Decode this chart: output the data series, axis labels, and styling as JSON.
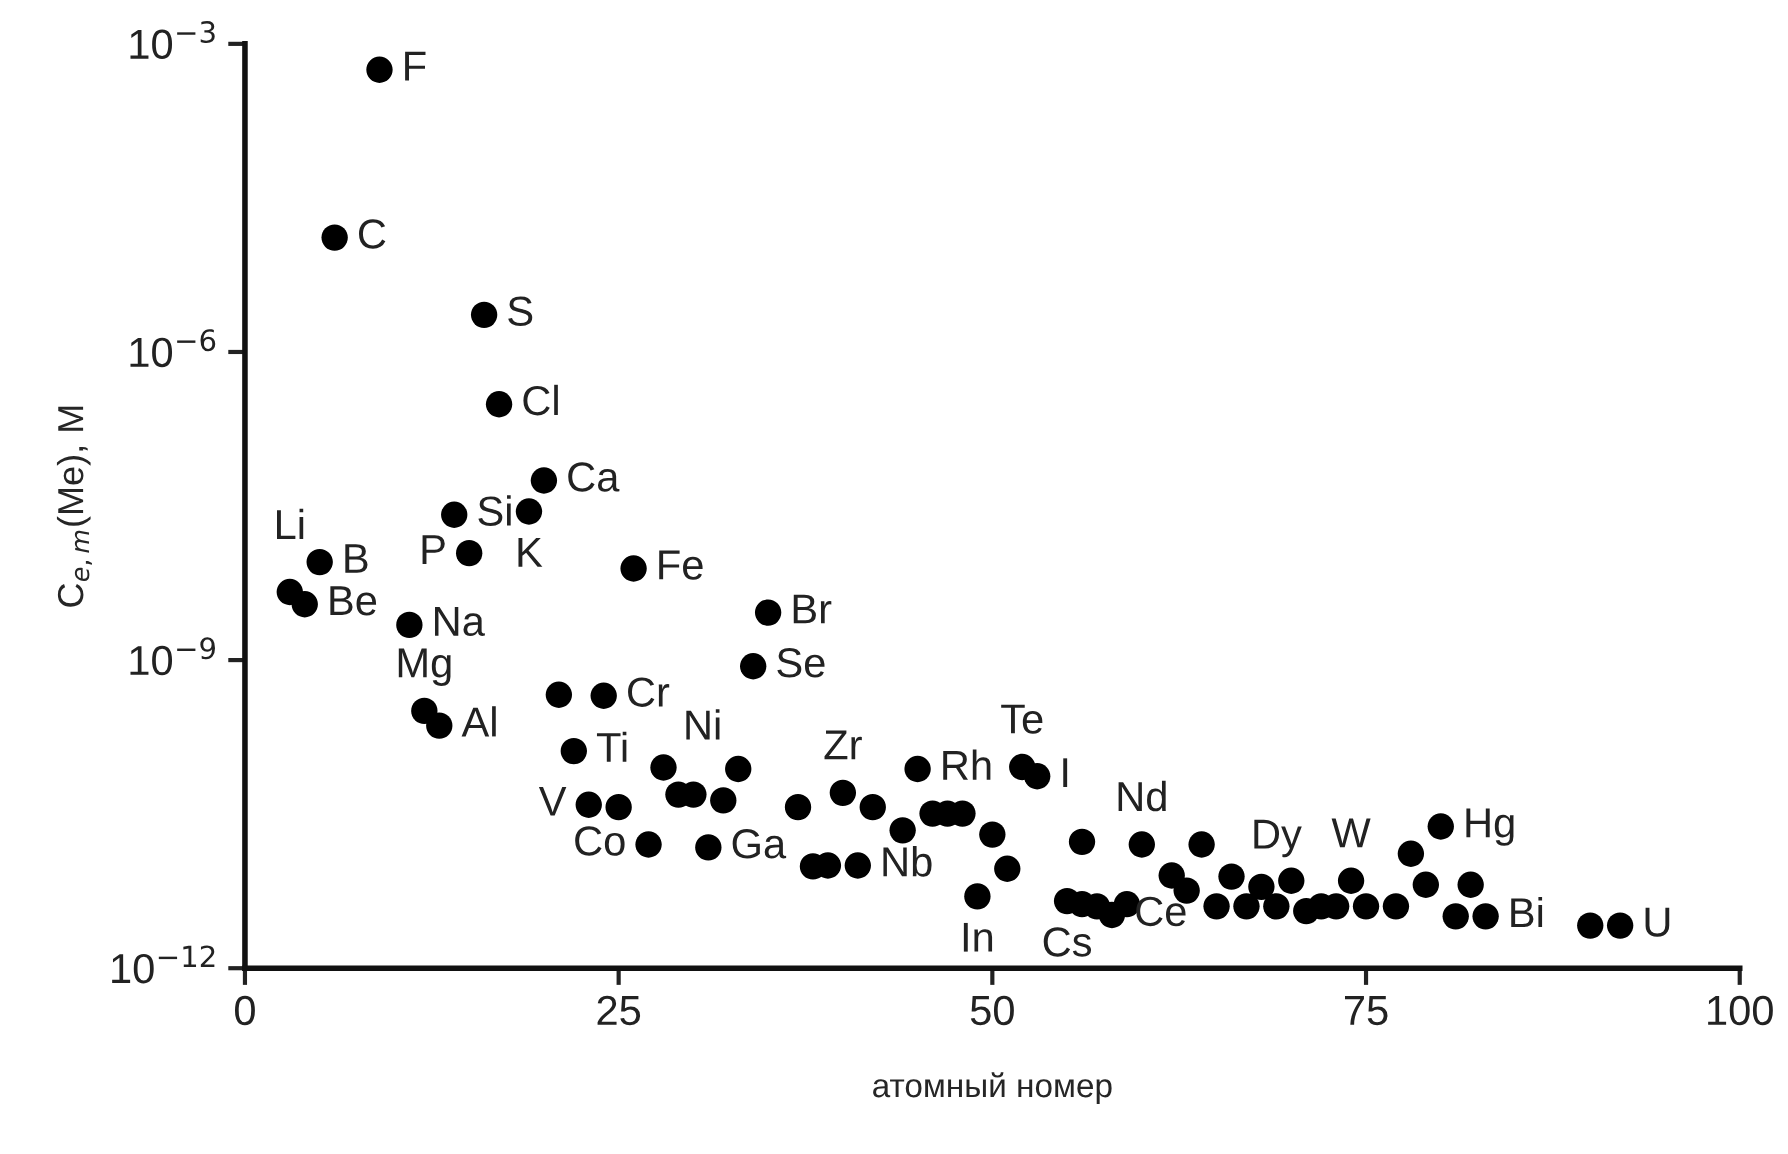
{
  "chart_data": {
    "type": "scatter",
    "xlabel": "атомный номер",
    "ylabel": "C$_{e,m}$(Me), M",
    "x": [
      3,
      4,
      5,
      6,
      9,
      11,
      12,
      13,
      14,
      15,
      16,
      17,
      19,
      20,
      21,
      22,
      23,
      24,
      25,
      26,
      27,
      28,
      29,
      30,
      31,
      32,
      33,
      34,
      35,
      37,
      38,
      39,
      40,
      41,
      42,
      44,
      45,
      46,
      47,
      48,
      49,
      50,
      51,
      52,
      53,
      55,
      56,
      56,
      57,
      58,
      59,
      60,
      62,
      63,
      64,
      65,
      66,
      67,
      68,
      69,
      70,
      71,
      72,
      73,
      74,
      75,
      77,
      78,
      79,
      80,
      81,
      82,
      83,
      90,
      92
    ],
    "series": [
      {
        "color": "#000000",
        "values": [
          4.6e-09,
          3.5e-09,
          9e-09,
          1.3e-05,
          0.00056,
          2.2e-09,
          3.2e-10,
          2.3e-10,
          2.6e-08,
          1.1e-08,
          2.3e-06,
          3.1e-07,
          2.8e-08,
          5.6e-08,
          4.6e-10,
          1.3e-10,
          3.9e-11,
          4.5e-10,
          3.7e-11,
          7.8e-09,
          1.6e-11,
          9e-11,
          4.9e-11,
          4.9e-11,
          1.5e-11,
          4.3e-11,
          8.7e-11,
          8.7e-10,
          2.9e-09,
          3.7e-11,
          9.8e-12,
          1e-11,
          5.1e-11,
          1e-11,
          3.7e-11,
          2.2e-11,
          8.7e-11,
          3.2e-11,
          3.2e-11,
          3.2e-11,
          5e-12,
          2e-11,
          9.3e-12,
          9.1e-11,
          7.4e-11,
          4.5e-12,
          1.7e-11,
          4.2e-12,
          4e-12,
          3.3e-12,
          4.2e-12,
          1.6e-11,
          8e-12,
          5.7e-12,
          1.6e-11,
          4e-12,
          7.8e-12,
          4e-12,
          6.2e-12,
          4e-12,
          7.1e-12,
          3.6e-12,
          4e-12,
          4e-12,
          7.1e-12,
          4e-12,
          4e-12,
          1.3e-11,
          6.5e-12,
          2.4e-11,
          3.2e-12,
          6.5e-12,
          3.2e-12,
          2.6e-12,
          2.6e-12
        ]
      }
    ],
    "log": "y",
    "marker": "circle",
    "grid": false,
    "xlim": [
      0,
      100
    ],
    "xticks": [
      0,
      25,
      50,
      75,
      100
    ],
    "ylim": [
      1e-12,
      0.001
    ],
    "yticks": [
      {
        "value": 1e-12,
        "label": "10$^{−12}$"
      },
      {
        "value": 1e-09,
        "label": "10$^{−9}$"
      },
      {
        "value": 1e-06,
        "label": "10$^{−6}$"
      },
      {
        "value": 0.001,
        "label": "10$^{−3}$"
      }
    ],
    "annotations": [
      {
        "text": "F",
        "x": 9,
        "y": 0.00056
      },
      {
        "text": "C",
        "x": 6,
        "y": 1.3e-05
      },
      {
        "text": "S",
        "x": 16,
        "y": 2.3e-06
      },
      {
        "text": "Cl",
        "x": 17,
        "y": 3.1e-07
      },
      {
        "text": "Ca",
        "x": 20,
        "y": 5.6e-08
      },
      {
        "text": "Si",
        "x": 14,
        "y": 2.6e-08
      },
      {
        "text": "Li",
        "x": 3,
        "y": 4.6e-09
      },
      {
        "text": "B",
        "x": 5,
        "y": 9e-09
      },
      {
        "text": "K",
        "x": 19,
        "y": 2.8e-08
      },
      {
        "text": "P",
        "x": 15,
        "y": 1.1e-08
      },
      {
        "text": "Fe",
        "x": 26,
        "y": 7.8e-09
      },
      {
        "text": "Br",
        "x": 35,
        "y": 2.9e-09
      },
      {
        "text": "Na",
        "x": 11,
        "y": 2.2e-09
      },
      {
        "text": "Be",
        "x": 4,
        "y": 3.5e-09
      },
      {
        "text": "Se",
        "x": 34,
        "y": 8.7e-10
      },
      {
        "text": "Cr",
        "x": 24,
        "y": 4.5e-10
      },
      {
        "text": "Mg",
        "x": 12,
        "y": 3.2e-10
      },
      {
        "text": "Al",
        "x": 13,
        "y": 2.3e-10
      },
      {
        "text": "Ti",
        "x": 22,
        "y": 1.3e-10
      },
      {
        "text": "Ni",
        "x": 28,
        "y": 9e-11
      },
      {
        "text": "V",
        "x": 23,
        "y": 3.9e-11
      },
      {
        "text": "Zr",
        "x": 40,
        "y": 5.1e-11
      },
      {
        "text": "Rh",
        "x": 45,
        "y": 8.7e-11
      },
      {
        "text": "Te",
        "x": 52,
        "y": 9.1e-11
      },
      {
        "text": "I",
        "x": 53,
        "y": 7.4e-11
      },
      {
        "text": "Co",
        "x": 27,
        "y": 1.6e-11
      },
      {
        "text": "Ga",
        "x": 31,
        "y": 1.5e-11
      },
      {
        "text": "Nb",
        "x": 41,
        "y": 1e-11
      },
      {
        "text": "In",
        "x": 49,
        "y": 5e-12
      },
      {
        "text": "Cs",
        "x": 55,
        "y": 4.5e-12
      },
      {
        "text": "Ce",
        "x": 58,
        "y": 3.3e-12
      },
      {
        "text": "Nd",
        "x": 60,
        "y": 1.6e-11
      },
      {
        "text": "Dy",
        "x": 66,
        "y": 7.8e-12
      },
      {
        "text": "W",
        "x": 74,
        "y": 7.1e-12
      },
      {
        "text": "Hg",
        "x": 80,
        "y": 2.4e-11
      },
      {
        "text": "Bi",
        "x": 83,
        "y": 3.2e-12
      },
      {
        "text": "U",
        "x": 92,
        "y": 2.6e-12
      }
    ]
  }
}
